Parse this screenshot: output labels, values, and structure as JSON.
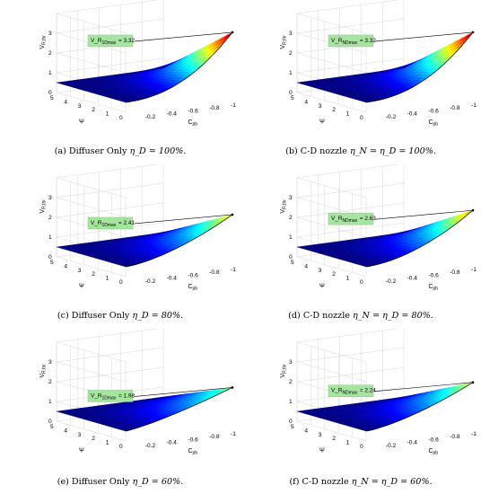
{
  "colors": {
    "colormap": "jet",
    "callout_fill": "#a6e5a0"
  },
  "panels": [
    {
      "caption_prefix": "(a) Diffuser Only ",
      "caption_math": "η_D = 100%.",
      "ylabel": "V_R,thr",
      "xlabel": "Ψ",
      "zlabel": "C_pb",
      "callout_label": "V_R",
      "callout_sub": "1Dmax",
      "callout_value": "= 3.32",
      "x_ticks": [
        "0",
        "1",
        "2",
        "3",
        "4",
        "5"
      ],
      "z_ticks": [
        "-0.2",
        "-0.4",
        "-0.6",
        "-0.8",
        "-1"
      ],
      "y_ticks": [
        "0",
        "1",
        "2",
        "3"
      ]
    },
    {
      "caption_prefix": "(b) C-D nozzle ",
      "caption_math": "η_N = η_D = 100%.",
      "ylabel": "V_R,thr",
      "xlabel": "Ψ",
      "zlabel": "C_pb",
      "callout_label": "V_R",
      "callout_sub": "NDmax",
      "callout_value": "= 3.32",
      "x_ticks": [
        "0",
        "1",
        "2",
        "3",
        "4",
        "5"
      ],
      "z_ticks": [
        "-0.2",
        "-0.4",
        "-0.6",
        "-0.8",
        "-1"
      ],
      "y_ticks": [
        "0",
        "1",
        "2",
        "3"
      ]
    },
    {
      "caption_prefix": "(c) Diffuser Only ",
      "caption_math": "η_D = 80%.",
      "ylabel": "V_R,thr",
      "xlabel": "Ψ",
      "zlabel": "C_pb",
      "callout_label": "V_R",
      "callout_sub": "1Dmax",
      "callout_value": "= 2.41",
      "x_ticks": [
        "0",
        "1",
        "2",
        "3",
        "4",
        "5"
      ],
      "z_ticks": [
        "-0.2",
        "-0.4",
        "-0.6",
        "-0.8",
        "-1"
      ],
      "y_ticks": [
        "0",
        "1",
        "2",
        "3"
      ]
    },
    {
      "caption_prefix": "(d) C-D nozzle ",
      "caption_math": "η_N = η_D = 80%.",
      "ylabel": "V_R,thr",
      "xlabel": "Ψ",
      "zlabel": "C_pb",
      "callout_label": "V_R",
      "callout_sub": "NDmax",
      "callout_value": "= 2.63",
      "x_ticks": [
        "0",
        "1",
        "2",
        "3",
        "4",
        "5"
      ],
      "z_ticks": [
        "-0.2",
        "-0.4",
        "-0.6",
        "-0.8",
        "-1"
      ],
      "y_ticks": [
        "0",
        "1",
        "2",
        "3"
      ]
    },
    {
      "caption_prefix": "(e) Diffuser Only ",
      "caption_math": "η_D = 60%.",
      "ylabel": "V_R,thr",
      "xlabel": "Ψ",
      "zlabel": "C_pb",
      "callout_label": "V_R",
      "callout_sub": "1Dmax",
      "callout_value": "= 1.98",
      "x_ticks": [
        "0",
        "1",
        "2",
        "3",
        "4",
        "5"
      ],
      "z_ticks": [
        "-0.2",
        "-0.4",
        "-0.6",
        "-0.8",
        "-1"
      ],
      "y_ticks": [
        "0",
        "1",
        "2",
        "3"
      ]
    },
    {
      "caption_prefix": "(f) C-D nozzle ",
      "caption_math": "η_N = η_D = 60%.",
      "ylabel": "V_R,thr",
      "xlabel": "Ψ",
      "zlabel": "C_pb",
      "callout_label": "V_R",
      "callout_sub": "NDmax",
      "callout_value": "= 2.24",
      "x_ticks": [
        "0",
        "1",
        "2",
        "3",
        "4",
        "5"
      ],
      "z_ticks": [
        "-0.2",
        "-0.4",
        "-0.6",
        "-0.8",
        "-1"
      ],
      "y_ticks": [
        "0",
        "1",
        "2",
        "3"
      ]
    }
  ]
}
